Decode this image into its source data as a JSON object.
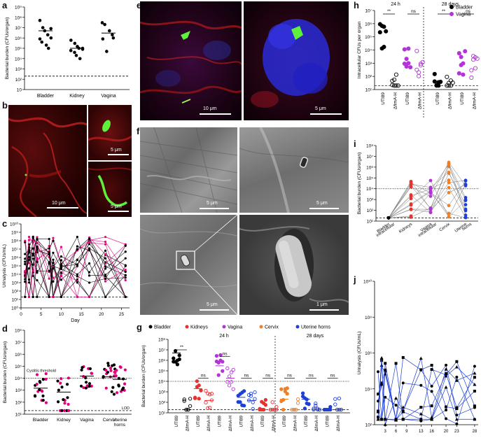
{
  "panel_letters": {
    "a": "a",
    "b": "b",
    "c": "c",
    "d": "d",
    "e": "e",
    "f": "f",
    "g": "g",
    "h": "h",
    "i": "i",
    "j": "j"
  },
  "scale_bars": {
    "b_main": "10 μm",
    "b_top": "5 μm",
    "b_bottom": "5 μm",
    "e_left": "10 μm",
    "e_right": "5 μm",
    "f_tl": "5 μm",
    "f_tr": "5 μm",
    "f_bl": "5 μm",
    "f_br": "1 μm"
  },
  "colors": {
    "black": "#000000",
    "pink": "#e6007e",
    "red": "#e8312f",
    "purple": "#b234d6",
    "orange": "#f07f26",
    "blue": "#1f3fd6",
    "gray": "#888888"
  },
  "chart_data": [
    {
      "id": "a",
      "type": "scatter",
      "ylabel": "Bacterial burden (CFUs/organ)",
      "yscale": "log",
      "ylim": [
        10,
        1000000000.0
      ],
      "yticks": [
        "10",
        "10²",
        "10³",
        "10⁴",
        "10⁵",
        "10⁶",
        "10⁷",
        "10⁸",
        "10⁹"
      ],
      "categories": [
        "Bladder",
        "Kidney",
        "Vagina"
      ],
      "series": [
        {
          "category": "Bladder",
          "values": [
            50000000.0,
            10000000.0,
            5000000.0,
            2000000.0,
            1000000.0,
            800000.0,
            400000.0,
            200000.0,
            100000.0,
            8000000.0
          ],
          "median": 5000000.0
        },
        {
          "category": "Kidney",
          "values": [
            600000.0,
            300000.0,
            150000.0,
            100000.0,
            80000.0,
            60000.0,
            40000.0,
            20000.0,
            10000.0,
            100000.0
          ],
          "median": 100000.0
        },
        {
          "category": "Vagina",
          "values": [
            30000000.0,
            20000000.0,
            5000000.0,
            2000000.0,
            1000000.0,
            800000.0,
            50000.0
          ],
          "median": 3000000.0
        }
      ],
      "lod": 200
    },
    {
      "id": "c",
      "type": "line",
      "xlabel": "Day",
      "ylabel": "Urinalysis (CFUs/mL)",
      "yscale": "log",
      "ylim": [
        1,
        10000000000.0
      ],
      "yticks": [
        "10⁰",
        "10¹",
        "10²",
        "10³",
        "10⁴",
        "10⁵",
        "10⁶",
        "10⁷",
        "10⁸",
        "10⁹",
        "10¹⁰"
      ],
      "xticks": [
        0,
        5,
        10,
        15,
        20,
        25
      ],
      "xlim": [
        0,
        27
      ],
      "x": [
        1,
        2,
        3,
        4,
        7,
        8,
        10,
        14,
        17,
        21,
        26
      ],
      "lod": 20
    },
    {
      "id": "d",
      "type": "scatter",
      "ylabel": "Bacterial burden (CFUs/organ)",
      "yscale": "log",
      "ylim": [
        10,
        100000000.0
      ],
      "yticks": [
        "10¹",
        "10²",
        "10³",
        "10⁴",
        "10⁵",
        "10⁶",
        "10⁷",
        "10⁸"
      ],
      "categories": [
        "Bladder",
        "Kidney",
        "Vagina",
        "Cervix",
        "Uterine horns"
      ],
      "annotations": [
        "Cystitis threshold",
        "LOD"
      ],
      "threshold": 10000.0,
      "lod": 20,
      "medians": [
        1500,
        700,
        15000.0,
        13000.0,
        8000
      ]
    },
    {
      "id": "g",
      "type": "scatter",
      "ylabel": "Bacterial burden (CFUs/organ)",
      "yscale": "log",
      "ylim": [
        10,
        100000000.0
      ],
      "yticks": [
        "10¹",
        "10²",
        "10³",
        "10⁴",
        "10⁵",
        "10⁶",
        "10⁷",
        "10⁸"
      ],
      "legend": [
        "Bladder",
        "Kidneys",
        "Vagina",
        "Cervix",
        "Uterine horns"
      ],
      "group_labels": [
        "24 h",
        "28 days"
      ],
      "xlabels": [
        "UTI89",
        "ΔfimA-H",
        "UTI89",
        "ΔfimA-H",
        "UTI89",
        "ΔfimA-H",
        "UTI89",
        "ΔfimA-H",
        "UTI89",
        "ΔfimA-H",
        "UTI89",
        "ΔfimA-H",
        "UTI89",
        "ΔfimA-H",
        "UTI89",
        "ΔfimA-H"
      ],
      "sig": [
        "**",
        "ns",
        "ns",
        "ns",
        "ns",
        "ns",
        "ns",
        "ns"
      ]
    },
    {
      "id": "h",
      "type": "scatter",
      "ylabel": "Intracellular CFUs per organ",
      "yscale": "log",
      "ylim": [
        10,
        10000000.0
      ],
      "yticks": [
        "10¹",
        "10²",
        "10³",
        "10⁴",
        "10⁵",
        "10⁶",
        "10⁷"
      ],
      "legend": [
        "Bladder",
        "Vagina"
      ],
      "group_labels": [
        "24 h",
        "28 days"
      ],
      "xlabels": [
        "UTI89",
        "ΔfimA-H",
        "UTI89",
        "ΔfimA-H",
        "UTI89",
        "ΔfimA-H",
        "UTI89",
        "ΔfimA-H"
      ],
      "sig": [
        "**",
        "ns",
        "**",
        "ns"
      ]
    },
    {
      "id": "i",
      "type": "line",
      "ylabel": "Bacterial burden (CFUs/organ)",
      "yscale": "log",
      "ylim": [
        10,
        100000000.0
      ],
      "yticks": [
        "10¹",
        "10²",
        "10³",
        "10⁴",
        "10⁵",
        "10⁶",
        "10⁷",
        "10⁸"
      ],
      "categories": [
        "Bladder intracellular",
        "Kidneys",
        "Vagina intracellular",
        "Cervix",
        "Uterine horns"
      ]
    },
    {
      "id": "j",
      "type": "line",
      "ylabel": "Urinalysis (CFUs/mL)",
      "yscale": "log",
      "ylim": [
        100,
        10000000000.0
      ],
      "yticks": [
        "10²",
        "10⁴",
        "10⁶",
        "10⁸",
        "10¹⁰"
      ],
      "xticks": [
        3,
        6,
        9,
        13,
        16,
        20,
        23,
        28
      ]
    }
  ]
}
